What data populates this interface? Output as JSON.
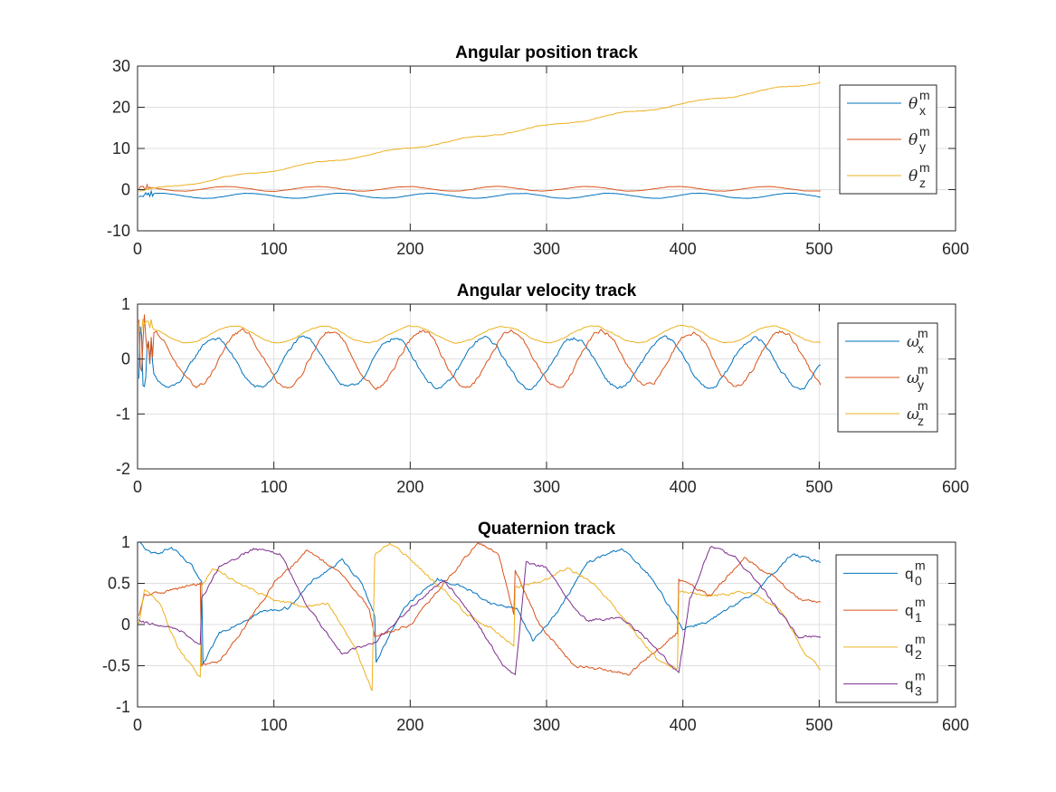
{
  "chart_data": [
    {
      "type": "line",
      "title": "Angular position track",
      "xlim": [
        0,
        600
      ],
      "ylim": [
        -10,
        30
      ],
      "xticks": [
        0,
        100,
        200,
        300,
        400,
        500,
        600
      ],
      "yticks": [
        -10,
        0,
        10,
        20,
        30
      ],
      "grid": true,
      "legend_position": "right",
      "x_range": [
        1,
        501
      ],
      "series": [
        {
          "name": "θ_x^m",
          "symbol": "θ",
          "sub": "x",
          "sup": "m",
          "color": "#0072BD",
          "kind": "oscillation",
          "mean": -1.5,
          "amp": 0.6,
          "period": 66,
          "phase": 0
        },
        {
          "name": "θ_y^m",
          "symbol": "θ",
          "sub": "y",
          "sup": "m",
          "color": "#D95319",
          "kind": "oscillation",
          "mean": 0.2,
          "amp": 0.55,
          "period": 66,
          "phase": 1.6
        },
        {
          "name": "θ_z^m",
          "symbol": "θ",
          "sub": "z",
          "sup": "m",
          "color": "#EDB120",
          "kind": "ramp",
          "start": -0.5,
          "end": 26.2
        }
      ]
    },
    {
      "type": "line",
      "title": "Angular velocity track",
      "xlim": [
        0,
        600
      ],
      "ylim": [
        -2,
        1
      ],
      "xticks": [
        0,
        100,
        200,
        300,
        400,
        500,
        600
      ],
      "yticks": [
        -2,
        -1,
        0,
        1
      ],
      "grid": true,
      "legend_position": "right",
      "x_range": [
        1,
        501
      ],
      "series": [
        {
          "name": "ω_x^m",
          "symbol": "ω",
          "sub": "x",
          "sup": "m",
          "color": "#0072BD",
          "kind": "oscillation",
          "mean": -0.07,
          "amp": 0.45,
          "period": 66,
          "phase": 2.5
        },
        {
          "name": "ω_y^m",
          "symbol": "ω",
          "sub": "y",
          "sup": "m",
          "color": "#D95319",
          "kind": "oscillation",
          "mean": 0.0,
          "amp": 0.5,
          "period": 66,
          "phase": 0.6
        },
        {
          "name": "ω_z^m",
          "symbol": "ω",
          "sub": "z",
          "sup": "m",
          "color": "#EDB120",
          "kind": "oscillation",
          "mean": 0.45,
          "amp": 0.15,
          "period": 66,
          "phase": 1.2
        }
      ]
    },
    {
      "type": "line",
      "title": "Quaternion track",
      "xlim": [
        0,
        600
      ],
      "ylim": [
        -1,
        1
      ],
      "xticks": [
        0,
        100,
        200,
        300,
        400,
        500,
        600
      ],
      "yticks": [
        -1,
        -0.5,
        0,
        0.5,
        1
      ],
      "grid": true,
      "legend_position": "right",
      "x_range": [
        1,
        501
      ],
      "series": [
        {
          "name": "q_0^m",
          "symbol": "q",
          "sub": "0",
          "sup": "m",
          "color": "#0072BD",
          "kind": "points",
          "points": [
            [
              1,
              1
            ],
            [
              10,
              0.85
            ],
            [
              25,
              0.93
            ],
            [
              40,
              0.7
            ],
            [
              47,
              0.5
            ],
            [
              48,
              -0.5
            ],
            [
              60,
              -0.1
            ],
            [
              90,
              0.15
            ],
            [
              110,
              0.2
            ],
            [
              130,
              0.55
            ],
            [
              150,
              0.78
            ],
            [
              165,
              0.5
            ],
            [
              174,
              0.1
            ],
            [
              175,
              -0.45
            ],
            [
              195,
              0.2
            ],
            [
              220,
              0.55
            ],
            [
              240,
              0.45
            ],
            [
              260,
              0.25
            ],
            [
              278,
              0.2
            ],
            [
              290,
              -0.2
            ],
            [
              310,
              0.2
            ],
            [
              330,
              0.75
            ],
            [
              355,
              0.93
            ],
            [
              375,
              0.6
            ],
            [
              395,
              0.1
            ],
            [
              400,
              -0.05
            ],
            [
              420,
              0.05
            ],
            [
              450,
              0.35
            ],
            [
              480,
              0.85
            ],
            [
              501,
              0.76
            ]
          ]
        },
        {
          "name": "q_1^m",
          "symbol": "q",
          "sub": "1",
          "sup": "m",
          "color": "#D95319",
          "kind": "points",
          "points": [
            [
              1,
              0.1
            ],
            [
              5,
              0.35
            ],
            [
              20,
              0.4
            ],
            [
              46,
              0.5
            ],
            [
              47,
              -0.5
            ],
            [
              60,
              -0.45
            ],
            [
              80,
              0
            ],
            [
              100,
              0.5
            ],
            [
              125,
              0.9
            ],
            [
              150,
              0.6
            ],
            [
              170,
              0.2
            ],
            [
              174,
              -0.15
            ],
            [
              200,
              0
            ],
            [
              220,
              0.4
            ],
            [
              250,
              1.0
            ],
            [
              265,
              0.85
            ],
            [
              276,
              0.1
            ],
            [
              277,
              0.65
            ],
            [
              295,
              0
            ],
            [
              320,
              -0.5
            ],
            [
              340,
              -0.55
            ],
            [
              360,
              -0.6
            ],
            [
              396,
              -0.1
            ],
            [
              397,
              0.55
            ],
            [
              420,
              0.35
            ],
            [
              445,
              0.8
            ],
            [
              465,
              0.6
            ],
            [
              485,
              0.32
            ],
            [
              501,
              0.27
            ]
          ]
        },
        {
          "name": "q_2^m",
          "symbol": "q",
          "sub": "2",
          "sup": "m",
          "color": "#EDB120",
          "kind": "points",
          "points": [
            [
              1,
              0
            ],
            [
              5,
              0.42
            ],
            [
              15,
              0.3
            ],
            [
              30,
              -0.3
            ],
            [
              46,
              -0.65
            ],
            [
              47,
              0.45
            ],
            [
              55,
              0.7
            ],
            [
              75,
              0.5
            ],
            [
              100,
              0.3
            ],
            [
              120,
              0.22
            ],
            [
              140,
              0.25
            ],
            [
              160,
              -0.3
            ],
            [
              172,
              -0.8
            ],
            [
              174,
              0.85
            ],
            [
              185,
              0.98
            ],
            [
              200,
              0.8
            ],
            [
              225,
              0.4
            ],
            [
              240,
              0.15
            ],
            [
              260,
              -0.05
            ],
            [
              276,
              -0.25
            ],
            [
              277,
              0.45
            ],
            [
              300,
              0.55
            ],
            [
              315,
              0.7
            ],
            [
              335,
              0.5
            ],
            [
              360,
              0
            ],
            [
              380,
              -0.4
            ],
            [
              396,
              -0.55
            ],
            [
              397,
              0.4
            ],
            [
              420,
              0.35
            ],
            [
              450,
              0.4
            ],
            [
              470,
              0.2
            ],
            [
              490,
              -0.35
            ],
            [
              501,
              -0.55
            ]
          ]
        },
        {
          "name": "q_3^m",
          "symbol": "q",
          "sub": "3",
          "sup": "m",
          "color": "#7E2F8E",
          "kind": "points",
          "points": [
            [
              1,
              0.05
            ],
            [
              10,
              0.0
            ],
            [
              30,
              -0.05
            ],
            [
              46,
              -0.25
            ],
            [
              47,
              0.3
            ],
            [
              60,
              0.7
            ],
            [
              85,
              0.92
            ],
            [
              105,
              0.85
            ],
            [
              125,
              0.2
            ],
            [
              150,
              -0.35
            ],
            [
              175,
              -0.2
            ],
            [
              200,
              0.2
            ],
            [
              225,
              0.55
            ],
            [
              250,
              0.0
            ],
            [
              268,
              -0.5
            ],
            [
              277,
              -0.63
            ],
            [
              285,
              0.75
            ],
            [
              300,
              0.7
            ],
            [
              315,
              0.3
            ],
            [
              330,
              0.05
            ],
            [
              355,
              0.1
            ],
            [
              375,
              -0.2
            ],
            [
              397,
              -0.6
            ],
            [
              405,
              0.3
            ],
            [
              420,
              0.95
            ],
            [
              440,
              0.8
            ],
            [
              460,
              0.4
            ],
            [
              485,
              -0.15
            ],
            [
              501,
              -0.15
            ]
          ]
        }
      ]
    }
  ]
}
